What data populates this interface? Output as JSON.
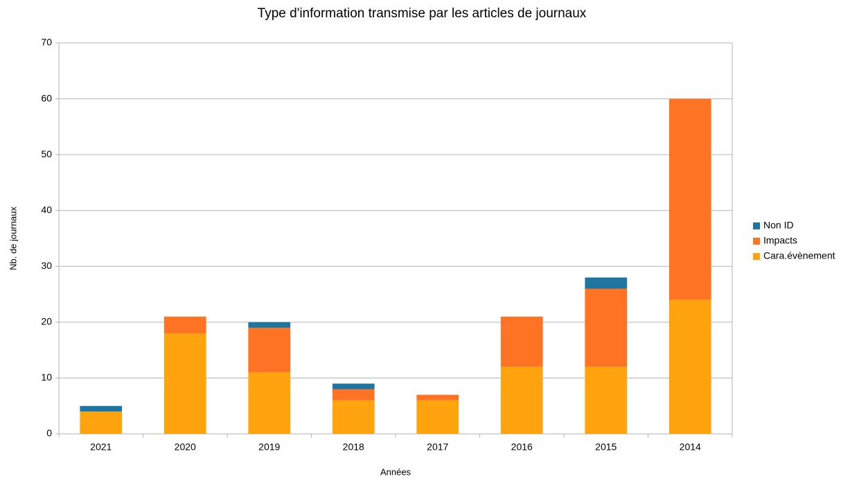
{
  "chart_data": {
    "type": "stacked_bar",
    "title": "Type d'information transmise par les articles de journaux",
    "xlabel": "Années",
    "ylabel": "Nb. de journaux",
    "categories": [
      "2021",
      "2020",
      "2019",
      "2018",
      "2017",
      "2016",
      "2015",
      "2014"
    ],
    "series": [
      {
        "name": "Cara.évènement",
        "color": "#ffa30f",
        "values": [
          4,
          18,
          11,
          6,
          6,
          12,
          12,
          24
        ]
      },
      {
        "name": "Impacts",
        "color": "#ff7325",
        "values": [
          0,
          3,
          8,
          2,
          1,
          9,
          14,
          36
        ]
      },
      {
        "name": "Non ID",
        "color": "#1e76a0",
        "values": [
          1,
          0,
          1,
          1,
          0,
          0,
          2,
          0
        ]
      }
    ],
    "ylim": [
      0,
      70
    ],
    "yticks": [
      0,
      10,
      20,
      30,
      40,
      50,
      60,
      70
    ],
    "grid": true,
    "legend": "right"
  }
}
